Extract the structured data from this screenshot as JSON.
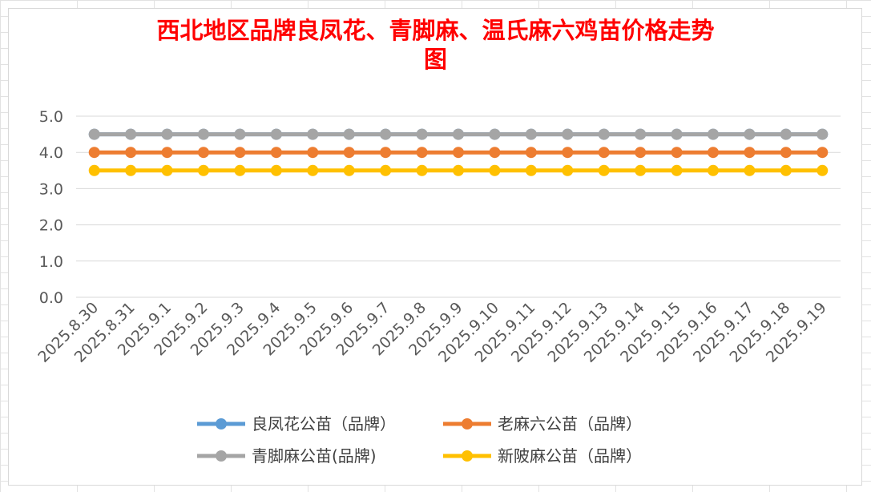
{
  "chart_data": {
    "type": "line",
    "title": "西北地区品牌良凤花、青脚麻、温氏麻六鸡苗价格走势图",
    "title_lines": [
      "西北地区品牌良凤花、青脚麻、温氏麻六鸡苗价格走势",
      "图"
    ],
    "categories": [
      "2025.8.30",
      "2025.8.31",
      "2025.9.1",
      "2025.9.2",
      "2025.9.3",
      "2025.9.4",
      "2025.9.5",
      "2025.9.6",
      "2025.9.7",
      "2025.9.8",
      "2025.9.9",
      "2025.9.10",
      "2025.9.11",
      "2025.9.12",
      "2025.9.13",
      "2025.9.14",
      "2025.9.15",
      "2025.9.16",
      "2025.9.17",
      "2025.9.18",
      "2025.9.19"
    ],
    "ylim": [
      0,
      5
    ],
    "yticks": [
      "0.0",
      "1.0",
      "2.0",
      "3.0",
      "4.0",
      "5.0"
    ],
    "grid": true,
    "legend_position": "bottom",
    "series": [
      {
        "name": "良凤花公苗（品牌）",
        "color": "#5b9bd5",
        "values": [
          4.5,
          4.5,
          4.5,
          4.5,
          4.5,
          4.5,
          4.5,
          4.5,
          4.5,
          4.5,
          4.5,
          4.5,
          4.5,
          4.5,
          4.5,
          4.5,
          4.5,
          4.5,
          4.5,
          4.5,
          4.5
        ]
      },
      {
        "name": "老麻六公苗（品牌）",
        "color": "#ed7d31",
        "values": [
          4.0,
          4.0,
          4.0,
          4.0,
          4.0,
          4.0,
          4.0,
          4.0,
          4.0,
          4.0,
          4.0,
          4.0,
          4.0,
          4.0,
          4.0,
          4.0,
          4.0,
          4.0,
          4.0,
          4.0,
          4.0
        ]
      },
      {
        "name": "青脚麻公苗(品牌)",
        "color": "#a5a5a5",
        "values": [
          4.5,
          4.5,
          4.5,
          4.5,
          4.5,
          4.5,
          4.5,
          4.5,
          4.5,
          4.5,
          4.5,
          4.5,
          4.5,
          4.5,
          4.5,
          4.5,
          4.5,
          4.5,
          4.5,
          4.5,
          4.5
        ]
      },
      {
        "name": "新陂麻公苗（品牌）",
        "color": "#ffc000",
        "values": [
          3.5,
          3.5,
          3.5,
          3.5,
          3.5,
          3.5,
          3.5,
          3.5,
          3.5,
          3.5,
          3.5,
          3.5,
          3.5,
          3.5,
          3.5,
          3.5,
          3.5,
          3.5,
          3.5,
          3.5,
          3.5
        ]
      }
    ]
  }
}
